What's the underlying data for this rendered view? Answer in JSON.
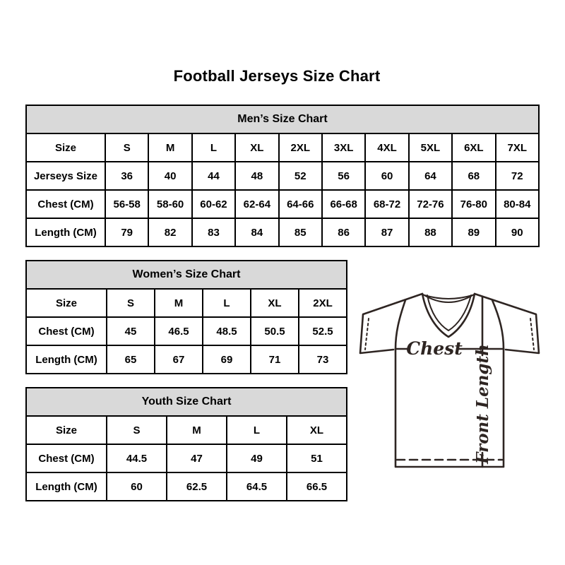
{
  "page_title": "Football Jerseys Size Chart",
  "chart_data": [
    {
      "type": "table",
      "title": "Men’s Size Chart",
      "columns": [
        "Size",
        "S",
        "M",
        "L",
        "XL",
        "2XL",
        "3XL",
        "4XL",
        "5XL",
        "6XL",
        "7XL"
      ],
      "rows": [
        [
          "Jerseys Size",
          "36",
          "40",
          "44",
          "48",
          "52",
          "56",
          "60",
          "64",
          "68",
          "72"
        ],
        [
          "Chest (CM)",
          "56-58",
          "58-60",
          "60-62",
          "62-64",
          "64-66",
          "66-68",
          "68-72",
          "72-76",
          "76-80",
          "80-84"
        ],
        [
          "Length (CM)",
          "79",
          "82",
          "83",
          "84",
          "85",
          "86",
          "87",
          "88",
          "89",
          "90"
        ]
      ]
    },
    {
      "type": "table",
      "title": "Women’s Size Chart",
      "columns": [
        "Size",
        "S",
        "M",
        "L",
        "XL",
        "2XL"
      ],
      "rows": [
        [
          "Chest (CM)",
          "45",
          "46.5",
          "48.5",
          "50.5",
          "52.5"
        ],
        [
          "Length (CM)",
          "65",
          "67",
          "69",
          "71",
          "73"
        ]
      ]
    },
    {
      "type": "table",
      "title": "Youth Size Chart",
      "columns": [
        "Size",
        "S",
        "M",
        "L",
        "XL"
      ],
      "rows": [
        [
          "Chest (CM)",
          "44.5",
          "47",
          "49",
          "51"
        ],
        [
          "Length (CM)",
          "60",
          "62.5",
          "64.5",
          "66.5"
        ]
      ]
    }
  ],
  "diagram": {
    "chest_label": "Chest",
    "front_length_label": "Front Length"
  },
  "colors": {
    "table_header_bg": "#d9d9d9",
    "table_border": "#000000",
    "diagram_line": "#2e2522",
    "title_text": "#000000"
  }
}
